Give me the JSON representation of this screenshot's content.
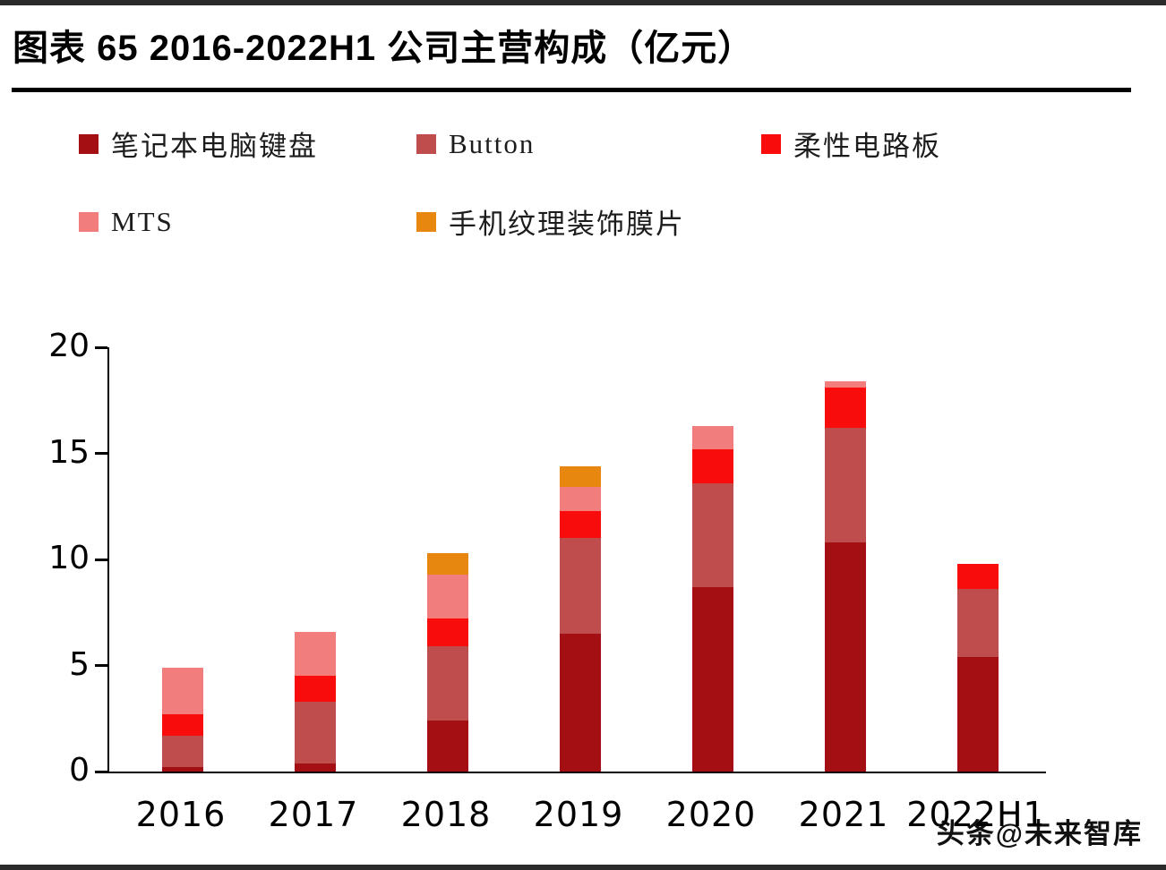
{
  "page": {
    "title": "图表 65 2016-2022H1 公司主营构成（亿元）",
    "watermark": "头条@未来智库"
  },
  "chart_data": {
    "type": "bar",
    "stacked": true,
    "title": "图表 65 2016-2022H1 公司主营构成（亿元）",
    "unit": "亿元",
    "categories": [
      "2016",
      "2017",
      "2018",
      "2019",
      "2020",
      "2021",
      "2022H1"
    ],
    "series": [
      {
        "name": "笔记本电脑键盘",
        "color": "#a40f13",
        "values": [
          0.2,
          0.4,
          2.4,
          6.5,
          8.7,
          10.8,
          5.4
        ]
      },
      {
        "name": "Button",
        "color": "#bf4d4d",
        "values": [
          1.5,
          2.9,
          3.5,
          4.5,
          4.9,
          5.4,
          3.2
        ]
      },
      {
        "name": "柔性电路板",
        "color": "#f80c0c",
        "values": [
          1.0,
          1.2,
          1.3,
          1.3,
          1.6,
          1.9,
          1.2
        ]
      },
      {
        "name": "MTS",
        "color": "#f27d7d",
        "values": [
          2.2,
          2.1,
          2.1,
          1.1,
          1.1,
          0.3,
          0.0
        ]
      },
      {
        "name": "手机纹理装饰膜片",
        "color": "#e8870f",
        "values": [
          0.0,
          0.0,
          1.0,
          1.0,
          0.0,
          0.0,
          0.0
        ]
      }
    ],
    "ylim": [
      0,
      20
    ],
    "yticks": [
      0,
      5,
      10,
      15,
      20
    ],
    "xlabel": "",
    "ylabel": "",
    "grid": false,
    "legend_position": "top-left, two rows"
  }
}
